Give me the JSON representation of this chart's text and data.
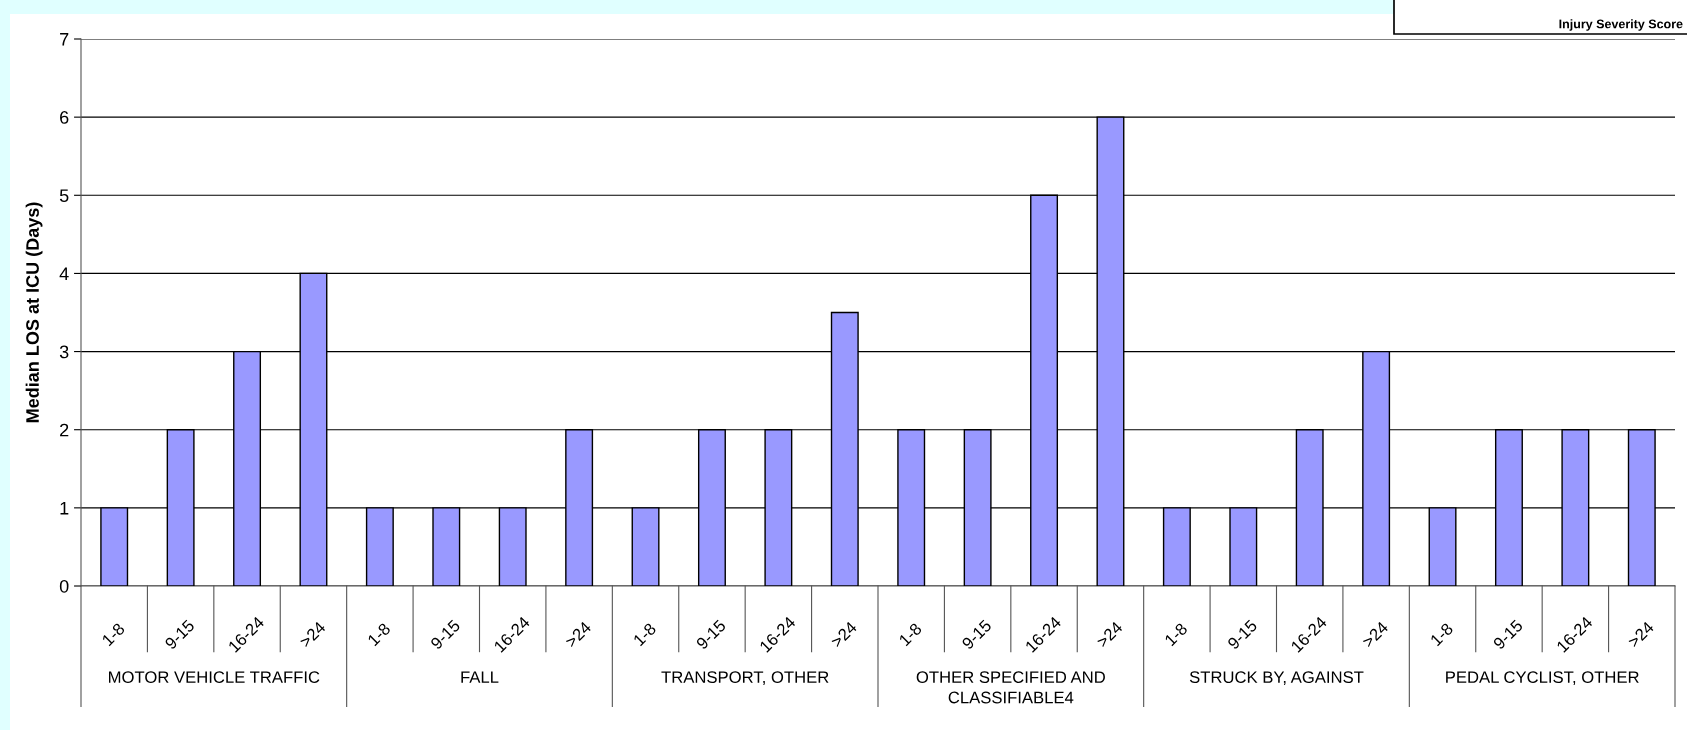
{
  "chart_data": {
    "type": "bar",
    "ylabel": "Median LOS at ICU (Days)",
    "categories": [
      "1-8",
      "9-15",
      "16-24",
      ">24",
      "1-8",
      "9-15",
      "16-24",
      ">24",
      "1-8",
      "9-15",
      "16-24",
      ">24",
      "1-8",
      "9-15",
      "16-24",
      ">24",
      "1-8",
      "9-15",
      "16-24",
      ">24",
      "1-8",
      "9-15",
      "16-24",
      ">24"
    ],
    "values": [
      1,
      2,
      3,
      4,
      1,
      1,
      1,
      2,
      1,
      2,
      2,
      3.5,
      2,
      2,
      5,
      6,
      1,
      1,
      2,
      3,
      1,
      2,
      2,
      2
    ],
    "color": "#9999ff",
    "ylim": [
      0,
      7
    ],
    "yticks": [
      0,
      1,
      2,
      3,
      4,
      5,
      6,
      7
    ],
    "grid": "y",
    "annotations": [
      "MOTOR VEHICLE TRAFFIC",
      "FALL",
      "TRANSPORT, OTHER",
      "OTHER SPECIFIED AND\nCLASSIFIABLE4",
      "STRUCK BY, AGAINST",
      "PEDAL CYCLIST, OTHER",
      "Injury Severity Score"
    ]
  }
}
